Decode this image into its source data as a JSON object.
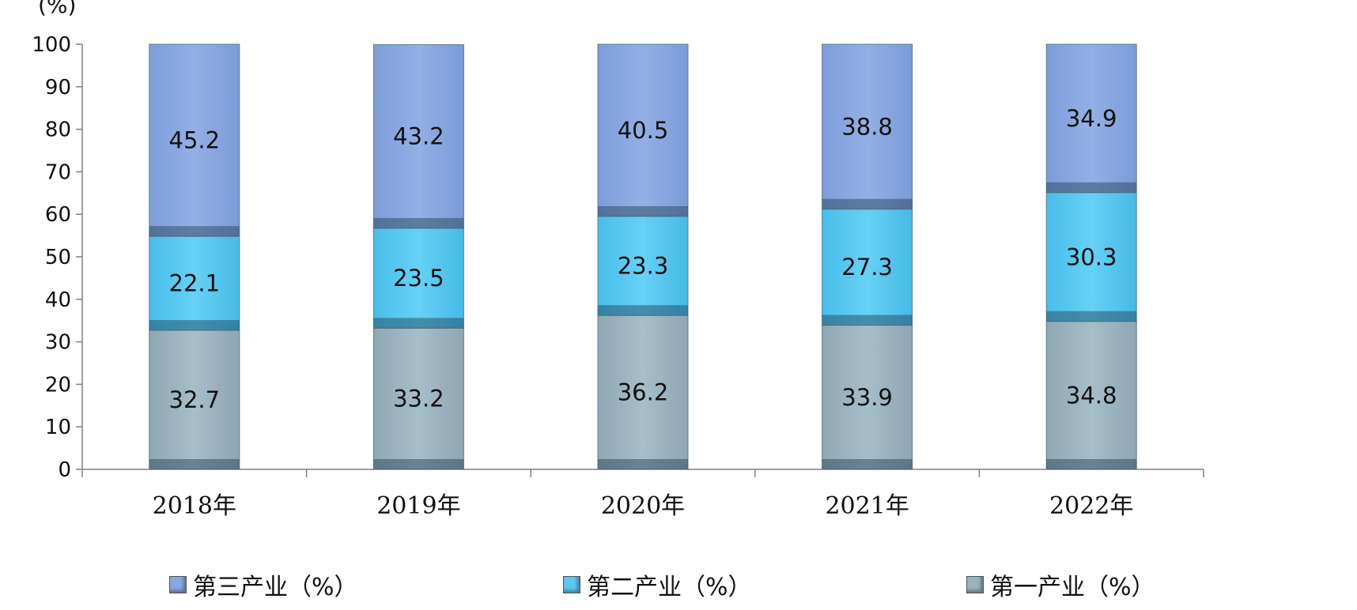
{
  "chart_data": {
    "type": "bar",
    "stacked": true,
    "unit_label": "(%)",
    "categories": [
      "2018年",
      "2019年",
      "2020年",
      "2021年",
      "2022年"
    ],
    "ylim": [
      0,
      100
    ],
    "yticks": [
      0,
      10,
      20,
      30,
      40,
      50,
      60,
      70,
      80,
      90,
      100
    ],
    "series": [
      {
        "name": "第一产业（%）",
        "values": [
          32.7,
          33.2,
          36.2,
          33.9,
          34.8
        ],
        "color": "#9bb4be"
      },
      {
        "name": "第二产业（%）",
        "values": [
          22.1,
          23.5,
          23.3,
          27.3,
          30.3
        ],
        "color": "#5bc8ef"
      },
      {
        "name": "第三产业（%）",
        "values": [
          45.2,
          43.2,
          40.5,
          38.8,
          34.9
        ],
        "color": "#8aa8e0"
      }
    ],
    "legend_order": [
      2,
      1,
      0
    ],
    "legend_position": "bottom",
    "grid": false
  }
}
